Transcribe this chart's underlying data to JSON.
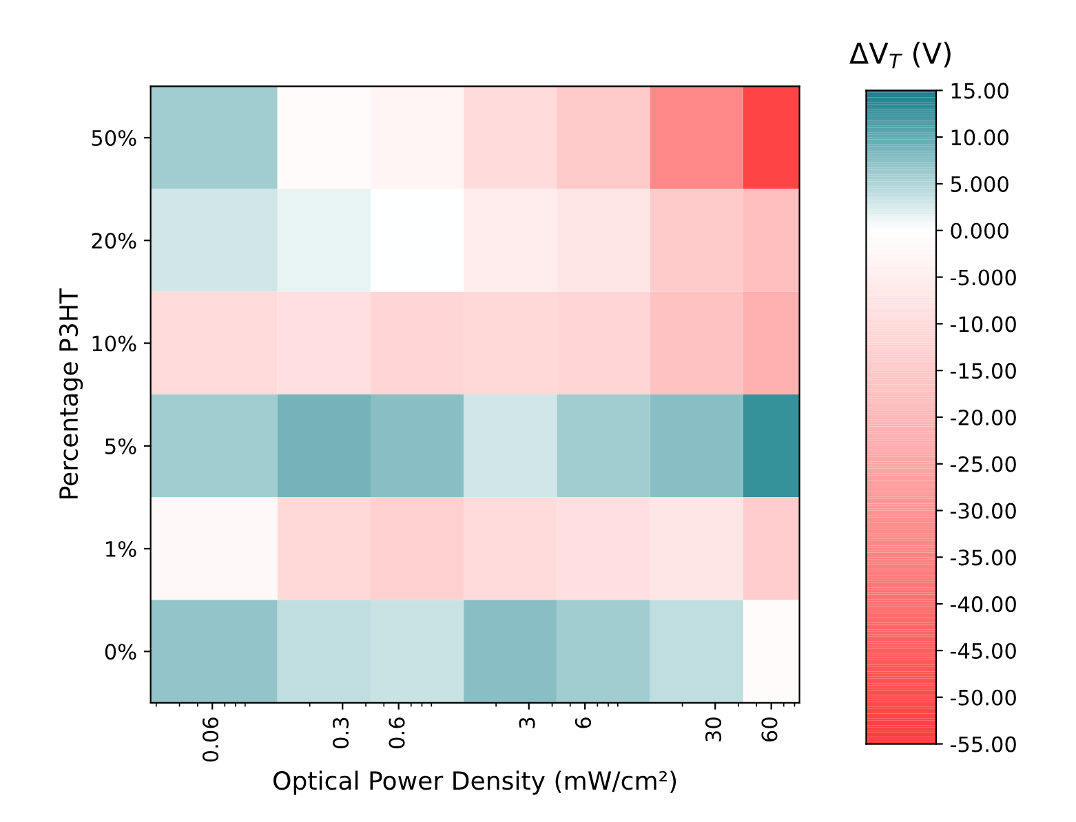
{
  "chart_data": {
    "type": "heatmap",
    "xlabel": "Optical Power Density (mW/cm²)",
    "ylabel": "Percentage P3HT",
    "clabel": "ΔV$_{T}$ (V)",
    "x": [
      0.06,
      0.3,
      0.6,
      3,
      6,
      30,
      60
    ],
    "y_categories": [
      "50%",
      "20%",
      "10%",
      "5%",
      "1%",
      "0%"
    ],
    "cells": [
      [
        6,
        -1,
        -3,
        -10,
        -15,
        -33,
        -52
      ],
      [
        3,
        1.5,
        0,
        -5,
        -7,
        -15,
        -18
      ],
      [
        -10,
        -9,
        -12,
        -11,
        -12,
        -17,
        -22
      ],
      [
        6,
        9,
        7.5,
        3,
        6,
        7.5,
        13
      ],
      [
        -2,
        -11,
        -13,
        -10,
        -9,
        -7,
        -14
      ],
      [
        7,
        4,
        3.5,
        7.5,
        6,
        4,
        -1
      ]
    ],
    "log": "x",
    "xlim": [
      0.028,
      85
    ],
    "xticks": [
      0.06,
      0.3,
      0.6,
      3,
      6,
      30,
      60
    ],
    "colors": [
      "#ff3b3b",
      "#ffffff",
      "#16808b"
    ],
    "clim": [
      -55,
      15
    ],
    "cticks": [
      {
        "value": 15,
        "label": "15.00"
      },
      {
        "value": 10,
        "label": "10.00"
      },
      {
        "value": 5,
        "label": "5.000"
      },
      {
        "value": 0,
        "label": "0.000"
      },
      {
        "value": -5,
        "label": "-5.000"
      },
      {
        "value": -10,
        "label": "-10.00"
      },
      {
        "value": -15,
        "label": "-15.00"
      },
      {
        "value": -20,
        "label": "-20.00"
      },
      {
        "value": -25,
        "label": "-25.00"
      },
      {
        "value": -30,
        "label": "-30.00"
      },
      {
        "value": -35,
        "label": "-35.00"
      },
      {
        "value": -40,
        "label": "-40.00"
      },
      {
        "value": -45,
        "label": "-45.00"
      },
      {
        "value": -50,
        "label": "-50.00"
      },
      {
        "value": -55,
        "label": "-55.00"
      }
    ]
  }
}
